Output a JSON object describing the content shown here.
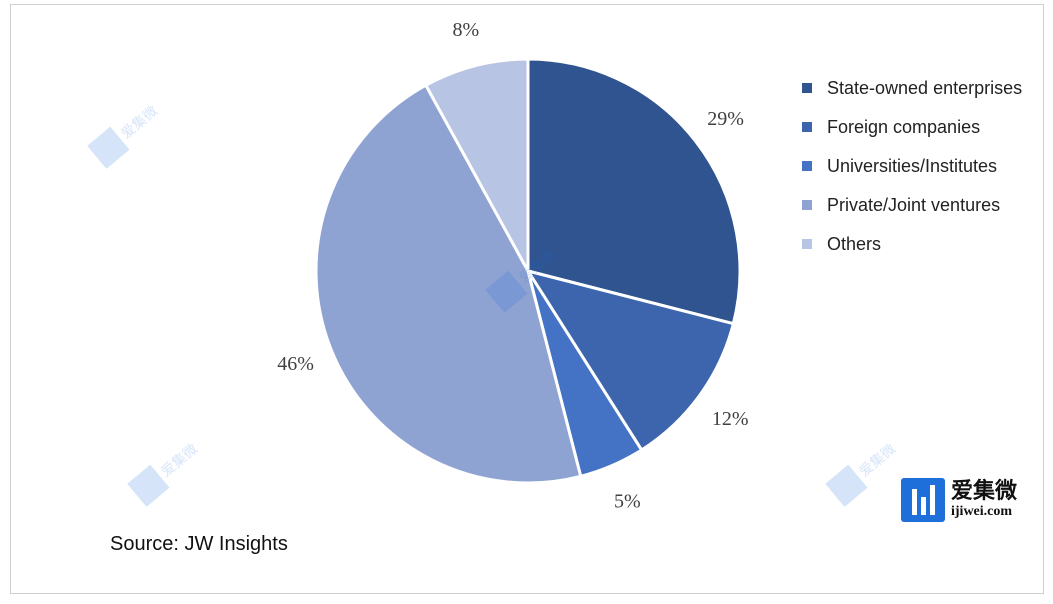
{
  "chart_data": {
    "type": "pie",
    "title": "",
    "categories": [
      "State-owned enterprises",
      "Foreign companies",
      "Universities/Institutes",
      "Private/Joint ventures",
      "Others"
    ],
    "values": [
      29,
      12,
      5,
      46,
      8
    ],
    "value_labels": [
      "29%",
      "12%",
      "5%",
      "46%",
      "8%"
    ],
    "colors": [
      "#2f5490",
      "#3c65ae",
      "#4472c4",
      "#8fa3d3",
      "#b8c4e3"
    ],
    "legend_position": "right",
    "start_angle": "12 o'clock",
    "direction": "clockwise"
  },
  "source": "Source: JW Insights",
  "logo": {
    "name_cn": "爱集微",
    "url": "ijiwei.com"
  }
}
